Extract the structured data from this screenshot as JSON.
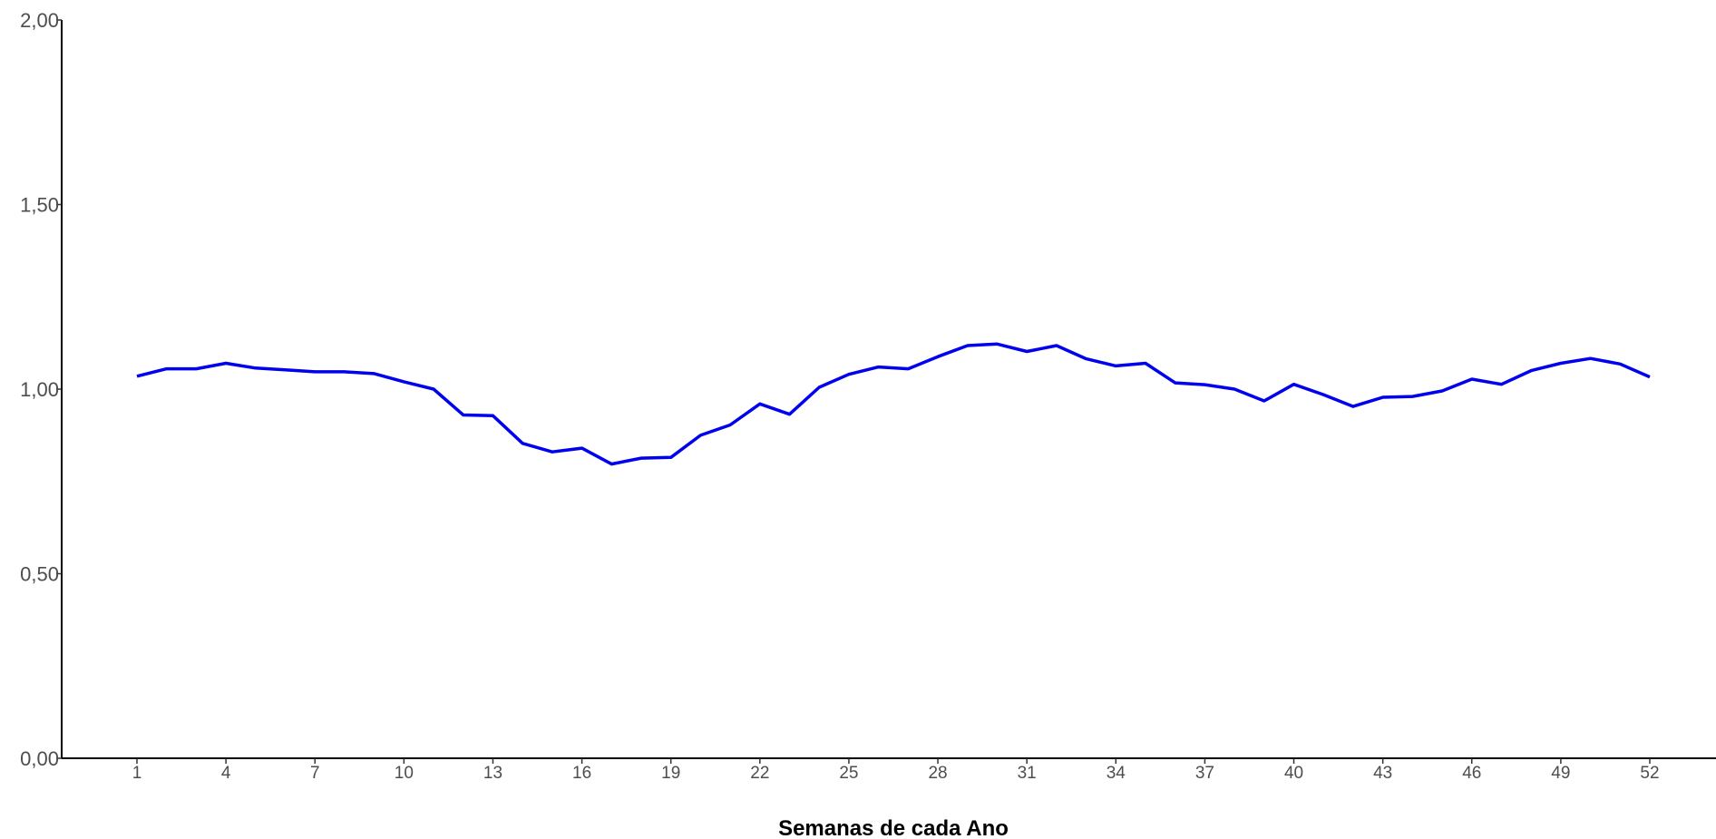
{
  "chart_data": {
    "type": "line",
    "title": "",
    "xlabel": "Semanas de cada Ano",
    "ylabel": "",
    "xlim": [
      1,
      52
    ],
    "ylim": [
      0,
      2
    ],
    "x_ticks": [
      "1",
      "4",
      "7",
      "10",
      "13",
      "16",
      "19",
      "22",
      "25",
      "28",
      "31",
      "34",
      "37",
      "40",
      "43",
      "46",
      "49",
      "52"
    ],
    "y_ticks": [
      "0,00",
      "0,50",
      "1,00",
      "1,50",
      "2,00"
    ],
    "grid": false,
    "legend": "none",
    "series": [
      {
        "color": "#0000ee",
        "x": [
          1,
          2,
          3,
          4,
          5,
          6,
          7,
          8,
          9,
          10,
          11,
          12,
          13,
          14,
          15,
          16,
          17,
          18,
          19,
          20,
          21,
          22,
          23,
          24,
          25,
          26,
          27,
          28,
          29,
          30,
          31,
          32,
          33,
          34,
          35,
          36,
          37,
          38,
          39,
          40,
          41,
          42,
          43,
          44,
          45,
          46,
          47,
          48,
          49,
          50,
          51,
          52
        ],
        "values": [
          1.035,
          1.055,
          1.055,
          1.07,
          1.057,
          1.052,
          1.047,
          1.047,
          1.042,
          1.02,
          1.0,
          0.93,
          0.928,
          0.853,
          0.83,
          0.84,
          0.797,
          0.813,
          0.815,
          0.875,
          0.903,
          0.96,
          0.932,
          1.005,
          1.04,
          1.06,
          1.055,
          1.088,
          1.118,
          1.122,
          1.102,
          1.118,
          1.082,
          1.063,
          1.07,
          1.017,
          1.012,
          1.0,
          0.968,
          1.013,
          0.985,
          0.953,
          0.978,
          0.98,
          0.995,
          1.027,
          1.013,
          1.05,
          1.07,
          1.083,
          1.068,
          1.033
        ]
      }
    ]
  }
}
